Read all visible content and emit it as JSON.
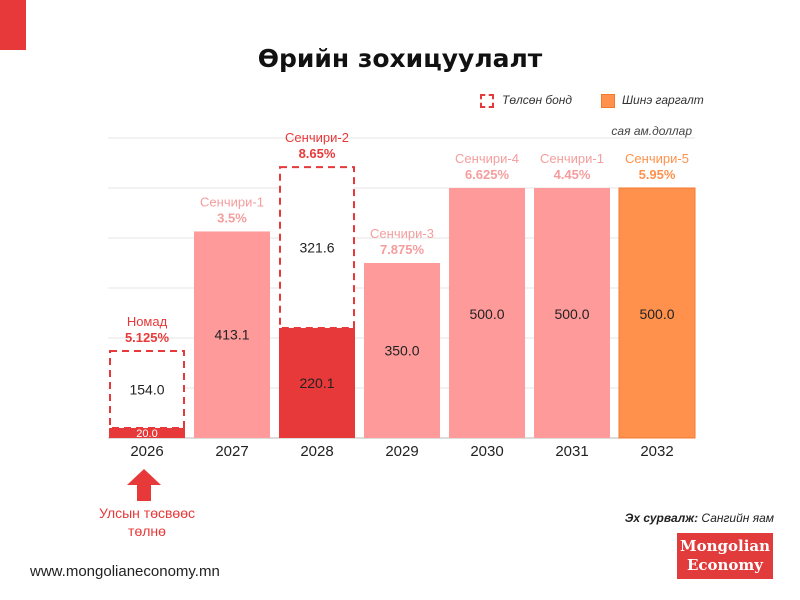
{
  "title": "Өрийн зохицуулалт",
  "legend": {
    "repaid_bond": "Төлсөн бонд",
    "new_issue": "Шинэ гаргалт"
  },
  "unit": "сая ам.доллар",
  "annotation": {
    "line1": "Улсын төсвөөс",
    "line2": "төлнө"
  },
  "source": {
    "label": "Эх сурвалж:",
    "value": "Сангийн яам"
  },
  "website": "www.mongolianeconomy.mn",
  "logo": {
    "line1": "Mongolian",
    "line2": "Economy"
  },
  "colors": {
    "dark_red": "#e8393a",
    "pink": "#ff9a9a",
    "orange": "#ff914d",
    "pink_text": "#f59d9d",
    "orange_text": "#ff914d",
    "grid": "#e6e6e6"
  },
  "chart_data": {
    "type": "bar",
    "ylim": [
      0,
      600
    ],
    "bars": [
      {
        "year": "2026",
        "name": "Номад",
        "rate": "5.125%",
        "budget": 20.0,
        "budget_label": "20.0",
        "repaid": 154.0,
        "repaid_label": "154.0",
        "new": null,
        "new_label": "",
        "label_color": "dark_red"
      },
      {
        "year": "2027",
        "name": "Сенчири-1",
        "rate": "3.5%",
        "budget": null,
        "budget_label": "",
        "repaid": null,
        "repaid_label": "",
        "new": 413.1,
        "new_label": "413.1",
        "label_color": "pink"
      },
      {
        "year": "2028",
        "name": "Сенчири-2",
        "rate": "8.65%",
        "budget": 220.1,
        "budget_label": "220.1",
        "repaid": 321.6,
        "repaid_label": "321.6",
        "new": null,
        "new_label": "",
        "label_color": "dark_red"
      },
      {
        "year": "2029",
        "name": "Сенчири-3",
        "rate": "7.875%",
        "budget": null,
        "budget_label": "",
        "repaid": null,
        "repaid_label": "",
        "new": 350.0,
        "new_label": "350.0",
        "label_color": "pink"
      },
      {
        "year": "2030",
        "name": "Сенчири-4",
        "rate": "6.625%",
        "budget": null,
        "budget_label": "",
        "repaid": null,
        "repaid_label": "",
        "new": 500.0,
        "new_label": "500.0",
        "label_color": "pink"
      },
      {
        "year": "2031",
        "name": "Сенчири-1",
        "rate": "4.45%",
        "budget": null,
        "budget_label": "",
        "repaid": null,
        "repaid_label": "",
        "new": 500.0,
        "new_label": "500.0",
        "label_color": "pink"
      },
      {
        "year": "2032",
        "name": "Сенчири-5",
        "rate": "5.95%",
        "budget": null,
        "budget_label": "",
        "repaid": null,
        "repaid_label": "",
        "new": 500.0,
        "new_label": "500.0",
        "label_color": "orange"
      }
    ]
  }
}
